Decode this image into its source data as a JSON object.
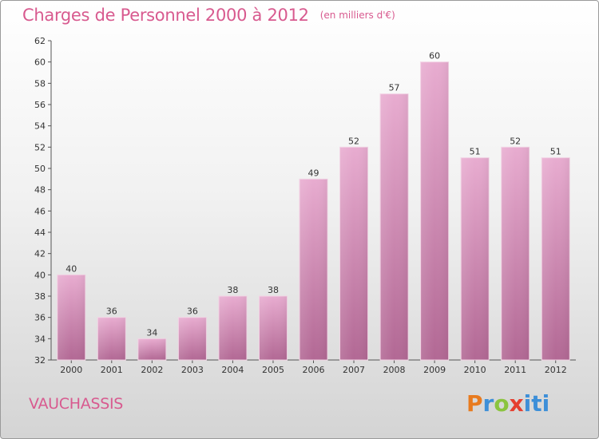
{
  "title": "Charges de Personnel 2000 à 2012",
  "subtitle": "(en milliers d'€)",
  "place": "VAUCHASSIS",
  "logo_text": "Proxiti",
  "colors": {
    "bar_light": "#e6a7cd",
    "bar_dark": "#b66c98",
    "title": "#d85a8f"
  },
  "chart_data": {
    "type": "bar",
    "title": "Charges de Personnel 2000 à 2012",
    "subtitle": "(en milliers d'€)",
    "categories": [
      "2000",
      "2001",
      "2002",
      "2003",
      "2004",
      "2005",
      "2006",
      "2007",
      "2008",
      "2009",
      "2010",
      "2011",
      "2012"
    ],
    "values": [
      40,
      36,
      34,
      36,
      38,
      38,
      49,
      52,
      57,
      60,
      51,
      52,
      51
    ],
    "ylim": [
      32,
      62
    ],
    "yticks": [
      32,
      34,
      36,
      38,
      40,
      42,
      44,
      46,
      48,
      50,
      52,
      54,
      56,
      58,
      60,
      62
    ],
    "grid": false,
    "legend": "none"
  }
}
